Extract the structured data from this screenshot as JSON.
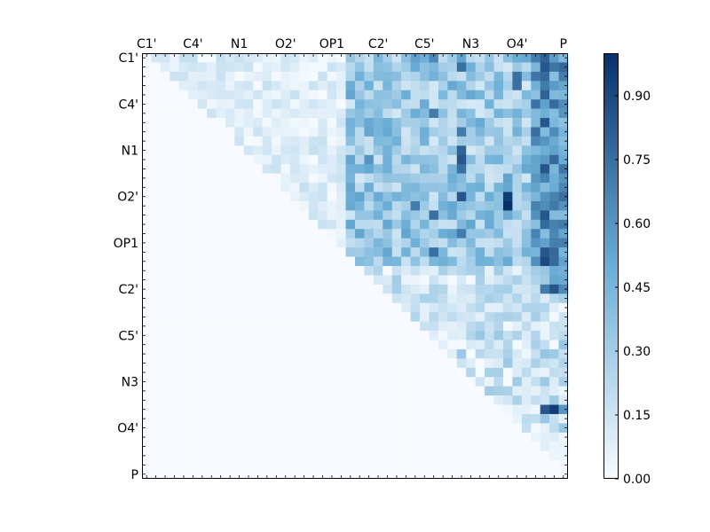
{
  "chart_data": {
    "type": "heatmap",
    "title": "",
    "xlabel": "",
    "ylabel": "",
    "tick_labels": [
      "C1'",
      "C4'",
      "N1",
      "O2'",
      "OP1",
      "C2'",
      "C5'",
      "N3",
      "O4'",
      "P"
    ],
    "tick_positions": [
      0,
      5,
      10,
      15,
      20,
      25,
      30,
      35,
      40,
      45
    ],
    "n_cells": 46,
    "upper_triangular": true,
    "colormap": "Blues",
    "colors": {
      "low": "#f7fbff",
      "mid": "#6baed6",
      "high": "#08306b"
    },
    "colorbar": {
      "min": 0.0,
      "max": 1.0,
      "ticks": [
        0.0,
        0.15,
        0.3,
        0.45,
        0.6,
        0.75,
        0.9
      ],
      "tick_labels": [
        "0.00",
        "0.15",
        "0.30",
        "0.45",
        "0.60",
        "0.75",
        "0.90"
      ]
    },
    "grid": false,
    "highlight_cells": [
      {
        "row": 0,
        "col": 29,
        "value": 0.55
      },
      {
        "row": 0,
        "col": 31,
        "value": 0.65
      },
      {
        "row": 0,
        "col": 43,
        "value": 0.8
      },
      {
        "row": 1,
        "col": 34,
        "value": 0.75
      },
      {
        "row": 1,
        "col": 43,
        "value": 0.85
      },
      {
        "row": 2,
        "col": 40,
        "value": 0.75
      },
      {
        "row": 3,
        "col": 40,
        "value": 0.75
      },
      {
        "row": 4,
        "col": 43,
        "value": 0.8
      },
      {
        "row": 6,
        "col": 31,
        "value": 0.7
      },
      {
        "row": 7,
        "col": 43,
        "value": 0.85
      },
      {
        "row": 8,
        "col": 34,
        "value": 0.7
      },
      {
        "row": 10,
        "col": 34,
        "value": 0.8
      },
      {
        "row": 11,
        "col": 34,
        "value": 0.85
      },
      {
        "row": 12,
        "col": 34,
        "value": 0.75
      },
      {
        "row": 11,
        "col": 24,
        "value": 0.6
      },
      {
        "row": 12,
        "col": 43,
        "value": 0.85
      },
      {
        "row": 15,
        "col": 34,
        "value": 0.85
      },
      {
        "row": 15,
        "col": 39,
        "value": 0.95
      },
      {
        "row": 16,
        "col": 39,
        "value": 1.0
      },
      {
        "row": 16,
        "col": 29,
        "value": 0.7
      },
      {
        "row": 17,
        "col": 31,
        "value": 0.75
      },
      {
        "row": 17,
        "col": 43,
        "value": 0.85
      },
      {
        "row": 19,
        "col": 34,
        "value": 0.7
      },
      {
        "row": 21,
        "col": 31,
        "value": 0.75
      },
      {
        "row": 21,
        "col": 43,
        "value": 0.85
      },
      {
        "row": 22,
        "col": 43,
        "value": 0.9
      },
      {
        "row": 25,
        "col": 44,
        "value": 0.85
      },
      {
        "row": 25,
        "col": 43,
        "value": 0.7
      },
      {
        "row": 25,
        "col": 45,
        "value": 0.65
      },
      {
        "row": 38,
        "col": 44,
        "value": 0.95
      },
      {
        "row": 38,
        "col": 43,
        "value": 0.85
      },
      {
        "row": 38,
        "col": 45,
        "value": 0.6
      }
    ]
  }
}
